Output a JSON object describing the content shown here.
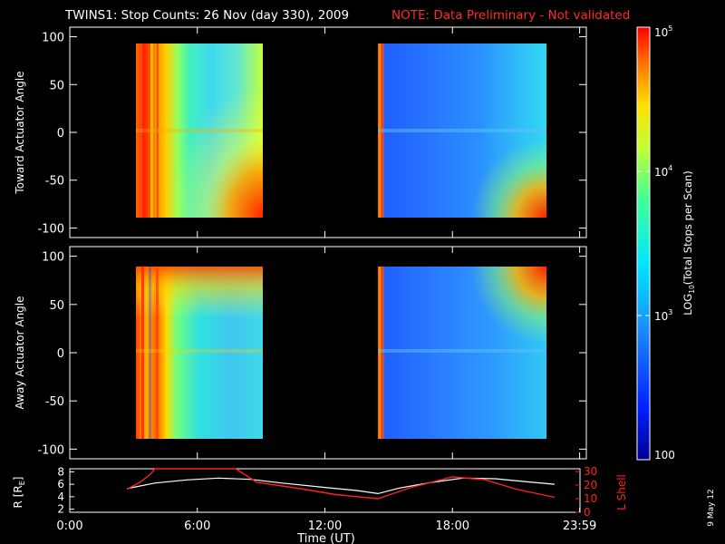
{
  "header": {
    "title": "TWINS1: Stop Counts: 26 Nov (day 330), 2009",
    "note": "NOTE: Data Preliminary - Not validated"
  },
  "footer": {
    "date_stamp": "9 May 12"
  },
  "colors": {
    "background": "#000000",
    "foreground": "#ffffff",
    "note": "#ff2a2a",
    "r_line": "#ffffff",
    "l_shell_line": "#ff2020"
  },
  "chart_data": [
    {
      "type": "heatmap",
      "panel": "toward",
      "ylabel": "Toward Actuator Angle",
      "ylim": [
        -110,
        110
      ],
      "yticks": [
        100,
        50,
        0,
        -50,
        -100
      ],
      "ytick_labels": [
        "100",
        "50",
        "0",
        "-50",
        "-100"
      ],
      "xlim": [
        0,
        24
      ],
      "data_blocks": [
        {
          "t_start": 2.7,
          "t_end": 9.1,
          "angle_range": [
            -88,
            90
          ],
          "character": "high counts (red/orange) near 2.7-4.4 h, decreasing to cyan; orange-red wedge at bottom right"
        },
        {
          "t_start": 14.5,
          "t_end": 22.8,
          "angle_range": [
            -88,
            90
          ],
          "character": "orange stripe at 14.5-14.8 h then mostly blue (~300-800); yellow-red wedge at bottom right"
        }
      ]
    },
    {
      "type": "heatmap",
      "panel": "away",
      "ylabel": "Away Actuator Angle",
      "ylim": [
        -110,
        110
      ],
      "yticks": [
        100,
        50,
        0,
        -50,
        -100
      ],
      "ytick_labels": [
        "100",
        "50",
        "0",
        "-50",
        "-100"
      ],
      "xlim": [
        0,
        24
      ],
      "data_blocks": [
        {
          "t_start": 2.7,
          "t_end": 9.1,
          "angle_range": [
            -88,
            90
          ],
          "character": "red/orange stripes 2.7-4.4 h, orange band near +90 at 3-7 h, green/cyan below"
        },
        {
          "t_start": 14.5,
          "t_end": 22.8,
          "angle_range": [
            -88,
            90
          ],
          "character": "orange stripe at 14.5-14.8 h then blue; yellow-red wedge at top right"
        }
      ]
    },
    {
      "type": "line",
      "panel": "orbit",
      "xlabel": "Time (UT)",
      "xlim": [
        0,
        24
      ],
      "xticks": [
        0,
        6,
        12,
        18,
        23.983
      ],
      "xtick_labels": [
        "0:00",
        "6:00",
        "12:00",
        "18:00",
        "23:59"
      ],
      "ylabel": "R [R",
      "ylabel_sub": "E",
      "ylabel_end": "]",
      "ylim": [
        1.5,
        8.5
      ],
      "yticks": [
        2,
        4,
        6,
        8
      ],
      "ytick_labels": [
        "2",
        "4",
        "6",
        "8"
      ],
      "y2label": "L Shell",
      "y2lim": [
        0,
        32
      ],
      "y2ticks": [
        0,
        10,
        20,
        30
      ],
      "y2tick_labels": [
        "0",
        "10",
        "20",
        "30"
      ],
      "series": [
        {
          "axis": "left",
          "x": [
            2.7,
            4.0,
            5.5,
            7.0,
            8.5,
            10.0,
            12.0,
            13.5,
            14.5,
            15.5,
            17.0,
            18.5,
            20.0,
            21.5,
            22.8
          ],
          "y": [
            5.3,
            6.2,
            6.7,
            7.0,
            6.8,
            6.2,
            5.5,
            5.0,
            4.5,
            5.4,
            6.3,
            7.0,
            6.9,
            6.4,
            6.0
          ]
        },
        {
          "axis": "right",
          "x": [
            2.7,
            3.3,
            3.8,
            4.0,
            7.8,
            8.0,
            8.8,
            11.0,
            12.5,
            14.5,
            16.0,
            18.0,
            19.5,
            21.0,
            22.8
          ],
          "y": [
            17.0,
            22.0,
            28.0,
            33.0,
            33.0,
            30.0,
            22.0,
            17.0,
            13.0,
            10.0,
            18.0,
            26.0,
            24.0,
            17.0,
            11.0
          ]
        }
      ]
    },
    {
      "type": "colorbar",
      "label_prefix": "LOG",
      "label_sub": "10",
      "label_suffix": "(Total Stops per Scan)",
      "scale": "log",
      "range": [
        100,
        100000
      ],
      "ticks": [
        {
          "value": 100,
          "base": "100",
          "exp": ""
        },
        {
          "value": 1000,
          "base": "10",
          "exp": "3"
        },
        {
          "value": 10000,
          "base": "10",
          "exp": "4"
        },
        {
          "value": 100000,
          "base": "10",
          "exp": "5"
        }
      ]
    }
  ]
}
